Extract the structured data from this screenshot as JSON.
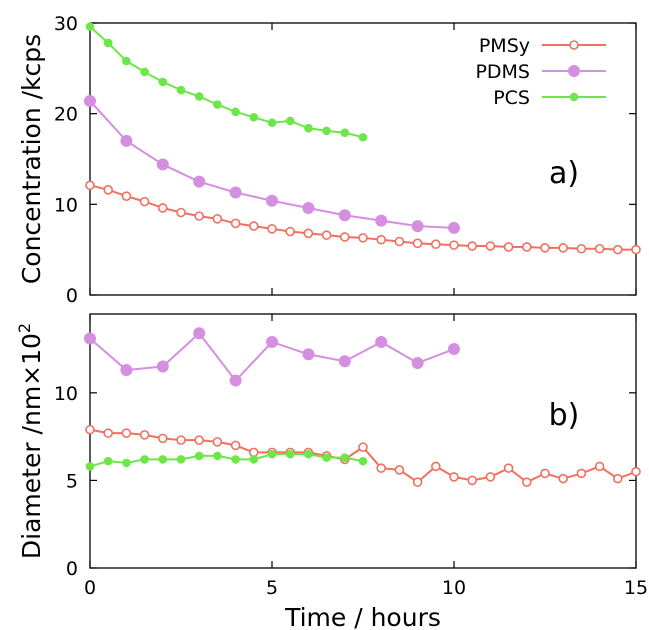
{
  "chart_data": [
    {
      "type": "line",
      "panel_label": "a)",
      "xlabel": "",
      "ylabel": "Concentration /kcps",
      "xlim": [
        0,
        15
      ],
      "ylim": [
        0,
        30
      ],
      "xticks": [
        "0",
        "5",
        "10",
        "15"
      ],
      "yticks": [
        "0",
        "10",
        "20",
        "30"
      ],
      "legend": {
        "position": "top-right",
        "entries": [
          "PMSy",
          "PDMS",
          "PCS"
        ]
      },
      "series": [
        {
          "name": "PMSy",
          "color": "#f07060",
          "marker": "open-circle",
          "x": [
            0,
            0.5,
            1,
            1.5,
            2,
            2.5,
            3,
            3.5,
            4,
            4.5,
            5,
            5.5,
            6,
            6.5,
            7,
            7.5,
            8,
            8.5,
            9,
            9.5,
            10,
            10.5,
            11,
            11.5,
            12,
            12.5,
            13,
            13.5,
            14,
            14.5,
            15
          ],
          "y": [
            12.1,
            11.6,
            10.9,
            10.3,
            9.6,
            9.1,
            8.7,
            8.4,
            7.9,
            7.6,
            7.3,
            7.0,
            6.8,
            6.6,
            6.4,
            6.3,
            6.1,
            5.9,
            5.7,
            5.6,
            5.5,
            5.4,
            5.4,
            5.3,
            5.3,
            5.2,
            5.2,
            5.1,
            5.1,
            5.0,
            5.0
          ]
        },
        {
          "name": "PDMS",
          "color": "#d48fe0",
          "marker": "filled-circle",
          "x": [
            0,
            1,
            2,
            3,
            4,
            5,
            6,
            7,
            8,
            9,
            10
          ],
          "y": [
            21.4,
            17.0,
            14.4,
            12.5,
            11.3,
            10.4,
            9.6,
            8.8,
            8.2,
            7.6,
            7.4
          ]
        },
        {
          "name": "PCS",
          "color": "#6ee64a",
          "marker": "filled-dot",
          "x": [
            0,
            0.5,
            1,
            1.5,
            2,
            2.5,
            3,
            3.5,
            4,
            4.5,
            5,
            5.5,
            6,
            6.5,
            7,
            7.5
          ],
          "y": [
            29.6,
            27.8,
            25.8,
            24.6,
            23.5,
            22.6,
            21.9,
            21.0,
            20.2,
            19.6,
            19.0,
            19.2,
            18.4,
            18.1,
            17.9,
            17.4
          ]
        }
      ]
    },
    {
      "type": "line",
      "panel_label": "b)",
      "xlabel": "Time / hours",
      "ylabel": "Diameter /nm×10",
      "ylabel_superscript": "2",
      "xlim": [
        0,
        15
      ],
      "ylim": [
        0,
        14.5
      ],
      "xticks": [
        "0",
        "5",
        "10",
        "15"
      ],
      "yticks": [
        "0",
        "5",
        "10"
      ],
      "series": [
        {
          "name": "PMSy",
          "color": "#f07060",
          "marker": "open-circle",
          "x": [
            0,
            0.5,
            1,
            1.5,
            2,
            2.5,
            3,
            3.5,
            4,
            4.5,
            5,
            5.5,
            6,
            6.5,
            7,
            7.5,
            8,
            8.5,
            9,
            9.5,
            10,
            10.5,
            11,
            11.5,
            12,
            12.5,
            13,
            13.5,
            14,
            14.5,
            15
          ],
          "y": [
            7.9,
            7.7,
            7.7,
            7.6,
            7.4,
            7.3,
            7.3,
            7.2,
            7.0,
            6.6,
            6.6,
            6.6,
            6.6,
            6.4,
            6.2,
            6.9,
            5.7,
            5.6,
            4.9,
            5.8,
            5.2,
            5.0,
            5.2,
            5.7,
            4.9,
            5.4,
            5.1,
            5.4,
            5.8,
            5.1,
            5.5
          ]
        },
        {
          "name": "PDMS",
          "color": "#d48fe0",
          "marker": "filled-circle",
          "x": [
            0,
            1,
            2,
            3,
            4,
            5,
            6,
            7,
            8,
            9,
            10
          ],
          "y": [
            13.1,
            11.3,
            11.5,
            13.4,
            10.7,
            12.9,
            12.2,
            11.8,
            12.9,
            11.7,
            12.5
          ]
        },
        {
          "name": "PCS",
          "color": "#6ee64a",
          "marker": "filled-dot",
          "x": [
            0,
            0.5,
            1,
            1.5,
            2,
            2.5,
            3,
            3.5,
            4,
            4.5,
            5,
            5.5,
            6,
            6.5,
            7,
            7.5
          ],
          "y": [
            5.8,
            6.1,
            6.0,
            6.2,
            6.2,
            6.2,
            6.4,
            6.4,
            6.2,
            6.2,
            6.5,
            6.5,
            6.5,
            6.3,
            6.3,
            6.1
          ]
        }
      ]
    }
  ]
}
